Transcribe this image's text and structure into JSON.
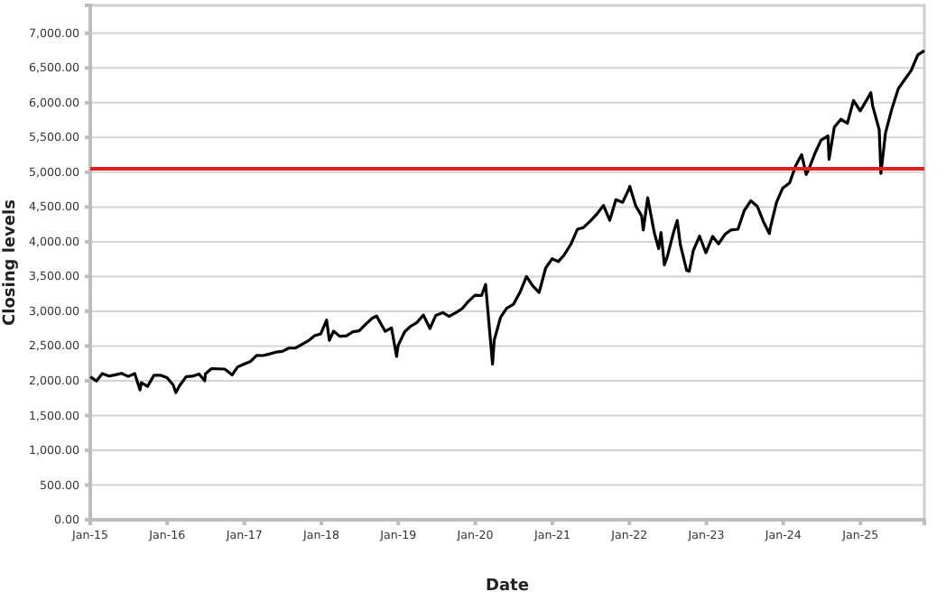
{
  "chart_data": {
    "type": "line",
    "xlabel": "Date",
    "ylabel": "Closing levels",
    "x": [
      "2015-01-02",
      "2015-01-30",
      "2015-02-27",
      "2015-03-31",
      "2015-04-30",
      "2015-05-29",
      "2015-06-30",
      "2015-07-31",
      "2015-08-25",
      "2015-08-31",
      "2015-09-30",
      "2015-10-30",
      "2015-11-30",
      "2015-12-31",
      "2016-01-29",
      "2016-02-11",
      "2016-02-29",
      "2016-03-31",
      "2016-04-29",
      "2016-05-31",
      "2016-06-27",
      "2016-06-30",
      "2016-07-29",
      "2016-08-31",
      "2016-09-30",
      "2016-11-04",
      "2016-11-30",
      "2016-12-30",
      "2017-01-31",
      "2017-02-28",
      "2017-03-31",
      "2017-04-28",
      "2017-05-31",
      "2017-06-30",
      "2017-07-31",
      "2017-08-31",
      "2017-09-29",
      "2017-10-31",
      "2017-11-30",
      "2017-12-29",
      "2018-01-26",
      "2018-02-08",
      "2018-02-28",
      "2018-03-29",
      "2018-04-30",
      "2018-05-31",
      "2018-06-29",
      "2018-07-31",
      "2018-08-31",
      "2018-09-20",
      "2018-10-31",
      "2018-11-30",
      "2018-12-24",
      "2018-12-31",
      "2019-01-31",
      "2019-02-28",
      "2019-03-29",
      "2019-04-30",
      "2019-05-31",
      "2019-06-28",
      "2019-07-31",
      "2019-08-30",
      "2019-09-30",
      "2019-10-31",
      "2019-11-29",
      "2019-12-31",
      "2020-01-31",
      "2020-02-19",
      "2020-03-23",
      "2020-03-31",
      "2020-04-30",
      "2020-05-29",
      "2020-06-30",
      "2020-07-31",
      "2020-08-31",
      "2020-09-30",
      "2020-10-30",
      "2020-11-30",
      "2020-12-31",
      "2021-01-29",
      "2021-02-26",
      "2021-03-31",
      "2021-04-30",
      "2021-05-28",
      "2021-06-30",
      "2021-07-30",
      "2021-08-31",
      "2021-09-30",
      "2021-10-29",
      "2021-11-30",
      "2021-12-31",
      "2022-01-03",
      "2022-01-31",
      "2022-02-28",
      "2022-03-08",
      "2022-03-29",
      "2022-04-29",
      "2022-05-20",
      "2022-05-31",
      "2022-06-16",
      "2022-06-30",
      "2022-07-29",
      "2022-08-16",
      "2022-08-31",
      "2022-09-30",
      "2022-10-12",
      "2022-10-31",
      "2022-11-30",
      "2022-12-30",
      "2023-01-31",
      "2023-02-28",
      "2023-03-31",
      "2023-04-28",
      "2023-05-31",
      "2023-06-30",
      "2023-07-31",
      "2023-08-31",
      "2023-09-29",
      "2023-10-27",
      "2023-10-31",
      "2023-11-30",
      "2023-12-29",
      "2024-01-31",
      "2024-02-29",
      "2024-03-28",
      "2024-04-19",
      "2024-04-30",
      "2024-05-31",
      "2024-06-28",
      "2024-07-31",
      "2024-08-05",
      "2024-08-30",
      "2024-09-30",
      "2024-10-31",
      "2024-11-29",
      "2024-12-31",
      "2025-01-31",
      "2025-02-19",
      "2025-02-28",
      "2025-03-31",
      "2025-04-08",
      "2025-04-30",
      "2025-05-30",
      "2025-06-30",
      "2025-07-31",
      "2025-08-29",
      "2025-09-30",
      "2025-10-31"
    ],
    "series": [
      {
        "color": "#000000",
        "values": [
          2058,
          1995,
          2104,
          2068,
          2086,
          2107,
          2063,
          2104,
          1867,
          1972,
          1920,
          2079,
          2080,
          2044,
          1940,
          1829,
          1932,
          2060,
          2065,
          2097,
          2000,
          2099,
          2174,
          2171,
          2168,
          2085,
          2199,
          2239,
          2279,
          2364,
          2363,
          2384,
          2412,
          2423,
          2470,
          2472,
          2519,
          2575,
          2648,
          2674,
          2873,
          2581,
          2714,
          2640,
          2648,
          2705,
          2718,
          2816,
          2902,
          2931,
          2711,
          2760,
          2351,
          2507,
          2704,
          2784,
          2834,
          2946,
          2752,
          2942,
          2980,
          2926,
          2977,
          3038,
          3141,
          3231,
          3226,
          3386,
          2237,
          2585,
          2912,
          3044,
          3100,
          3271,
          3500,
          3363,
          3270,
          3622,
          3756,
          3714,
          3811,
          3973,
          4181,
          4204,
          4298,
          4395,
          4523,
          4308,
          4605,
          4567,
          4766,
          4797,
          4516,
          4374,
          4170,
          4632,
          4132,
          3901,
          4132,
          3667,
          3785,
          4130,
          4305,
          3955,
          3586,
          3577,
          3872,
          4080,
          3840,
          4077,
          3970,
          4109,
          4169,
          4180,
          4450,
          4589,
          4508,
          4288,
          4117,
          4194,
          4568,
          4770,
          4846,
          5096,
          5254,
          4967,
          5036,
          5278,
          5460,
          5522,
          5186,
          5648,
          5762,
          5705,
          6032,
          5882,
          6041,
          6144,
          5955,
          5612,
          4983,
          5569,
          5912,
          6205,
          6339,
          6460,
          6688,
          6750
        ]
      }
    ],
    "xlim": [
      "2015-01-01",
      "2025-10-31"
    ],
    "xticks": [
      {
        "value": "2015-01-01",
        "label": "Jan-15"
      },
      {
        "value": "2016-01-01",
        "label": "Jan-16"
      },
      {
        "value": "2017-01-01",
        "label": "Jan-17"
      },
      {
        "value": "2018-01-01",
        "label": "Jan-18"
      },
      {
        "value": "2019-01-01",
        "label": "Jan-19"
      },
      {
        "value": "2020-01-01",
        "label": "Jan-20"
      },
      {
        "value": "2021-01-01",
        "label": "Jan-21"
      },
      {
        "value": "2022-01-01",
        "label": "Jan-22"
      },
      {
        "value": "2023-01-01",
        "label": "Jan-23"
      },
      {
        "value": "2024-01-01",
        "label": "Jan-24"
      },
      {
        "value": "2025-01-01",
        "label": "Jan-25"
      }
    ],
    "ylim": [
      0,
      7400
    ],
    "yticks": [
      {
        "value": 0,
        "label": "0.00"
      },
      {
        "value": 500,
        "label": "500.00"
      },
      {
        "value": 1000,
        "label": "1,000.00"
      },
      {
        "value": 1500,
        "label": "1,500.00"
      },
      {
        "value": 2000,
        "label": "2,000.00"
      },
      {
        "value": 2500,
        "label": "2,500.00"
      },
      {
        "value": 3000,
        "label": "3,000.00"
      },
      {
        "value": 3500,
        "label": "3,500.00"
      },
      {
        "value": 4000,
        "label": "4,000.00"
      },
      {
        "value": 4500,
        "label": "4,500.00"
      },
      {
        "value": 5000,
        "label": "5,000.00"
      },
      {
        "value": 5500,
        "label": "5,500.00"
      },
      {
        "value": 6000,
        "label": "6,000.00"
      },
      {
        "value": 6500,
        "label": "6,500.00"
      },
      {
        "value": 7000,
        "label": "7,000.00"
      }
    ],
    "grid": "y",
    "marker": "none",
    "line_style": "solid",
    "ref_lines": [
      {
        "axis": "y",
        "value": 5050,
        "color": "#e02020"
      }
    ]
  }
}
